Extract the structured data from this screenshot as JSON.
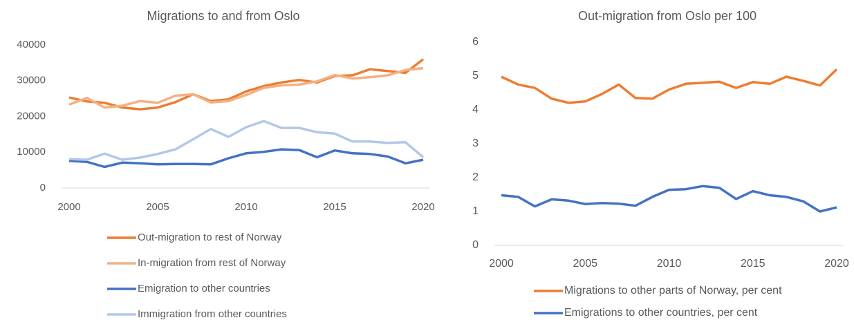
{
  "chart_data": [
    {
      "type": "line",
      "title": "Migrations to and from Oslo",
      "x": [
        2000,
        2001,
        2002,
        2003,
        2004,
        2005,
        2006,
        2007,
        2008,
        2009,
        2010,
        2011,
        2012,
        2013,
        2014,
        2015,
        2016,
        2017,
        2018,
        2019,
        2020
      ],
      "xlim": [
        2000,
        2020
      ],
      "xticks": [
        2000,
        2005,
        2010,
        2015,
        2020
      ],
      "ylim": [
        0,
        40000
      ],
      "yticks": [
        0,
        10000,
        20000,
        30000,
        40000
      ],
      "grid": false,
      "legend": "bottom",
      "series": [
        {
          "name": "Out-migration to rest of Norway",
          "color": "#ed7d31",
          "values": [
            25300,
            24200,
            23800,
            22500,
            22000,
            22500,
            24000,
            26200,
            24300,
            24800,
            27000,
            28500,
            29500,
            30200,
            29500,
            31300,
            31500,
            33200,
            32700,
            32200,
            36000
          ]
        },
        {
          "name": "In-migration from rest of Norway",
          "color": "#f4b183",
          "values": [
            23300,
            25200,
            22500,
            23000,
            24300,
            23800,
            25800,
            26200,
            23900,
            24300,
            26000,
            28000,
            28700,
            28900,
            29800,
            31600,
            30600,
            31000,
            31500,
            33000,
            33500
          ]
        },
        {
          "name": "Emigration to other countries",
          "color": "#4472c4",
          "values": [
            7600,
            7300,
            5900,
            7100,
            6900,
            6600,
            6700,
            6700,
            6600,
            8300,
            9700,
            10100,
            10800,
            10600,
            8600,
            10500,
            9700,
            9500,
            8800,
            6900,
            7900
          ]
        },
        {
          "name": "Immigration from other countries",
          "color": "#b4c7e7",
          "values": [
            8100,
            7900,
            9600,
            7900,
            8500,
            9500,
            10800,
            13600,
            16500,
            14300,
            17000,
            18700,
            16800,
            16800,
            15600,
            15200,
            13000,
            13000,
            12600,
            12800,
            8600
          ]
        }
      ]
    },
    {
      "type": "line",
      "title": "Out-migration from Oslo per 100",
      "x": [
        2000,
        2001,
        2002,
        2003,
        2004,
        2005,
        2006,
        2007,
        2008,
        2009,
        2010,
        2011,
        2012,
        2013,
        2014,
        2015,
        2016,
        2017,
        2018,
        2019,
        2020
      ],
      "xlim": [
        2000,
        2020
      ],
      "xticks": [
        2000,
        2005,
        2010,
        2015,
        2020
      ],
      "ylim": [
        0,
        6
      ],
      "yticks": [
        0,
        1,
        2,
        3,
        4,
        5,
        6
      ],
      "grid": false,
      "legend": "bottom",
      "series": [
        {
          "name": "Migrations to other parts of Norway, per cent",
          "color": "#ed7d31",
          "values": [
            4.98,
            4.75,
            4.65,
            4.33,
            4.21,
            4.25,
            4.47,
            4.75,
            4.35,
            4.33,
            4.6,
            4.77,
            4.8,
            4.83,
            4.65,
            4.82,
            4.77,
            4.98,
            4.86,
            4.72,
            5.2
          ]
        },
        {
          "name": "Emigrations to other countries, per cent",
          "color": "#4472c4",
          "values": [
            1.48,
            1.43,
            1.15,
            1.36,
            1.32,
            1.22,
            1.25,
            1.23,
            1.17,
            1.43,
            1.64,
            1.66,
            1.75,
            1.7,
            1.37,
            1.6,
            1.48,
            1.43,
            1.3,
            1.0,
            1.12
          ]
        }
      ]
    }
  ]
}
